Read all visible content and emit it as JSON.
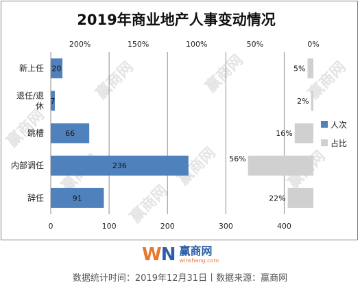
{
  "chart_data": {
    "type": "bar",
    "title": "2019年商业地产人事变动情况",
    "categories": [
      "新上任",
      "退任/退休",
      "跳槽",
      "内部调任",
      "辞任"
    ],
    "category_label_lines": [
      [
        "新上任"
      ],
      [
        "退任/退",
        "休"
      ],
      [
        "跳槽"
      ],
      [
        "内部调任"
      ],
      [
        "辞任"
      ]
    ],
    "series": [
      {
        "name": "人次",
        "values": [
          20,
          7,
          66,
          236,
          91
        ],
        "value_labels": [
          "20",
          "7",
          "66",
          "236",
          "91"
        ],
        "color": "#4f81bd",
        "axis": "bottom",
        "xlim": [
          0,
          450
        ],
        "ticks": [
          0,
          100,
          200,
          300,
          400
        ],
        "tick_labels": [
          "0",
          "100",
          "200",
          "300",
          "400"
        ]
      },
      {
        "name": "占比",
        "values": [
          5,
          2,
          16,
          56,
          22
        ],
        "value_labels": [
          "5%",
          "2%",
          "16%",
          "56%",
          "22%"
        ],
        "color": "#d0d0d0",
        "axis": "top",
        "reversed": true,
        "xlim": [
          0,
          225
        ],
        "ticks": [
          200,
          150,
          100,
          50,
          0
        ],
        "tick_labels": [
          "200%",
          "150%",
          "100%",
          "50%",
          "0%"
        ]
      }
    ],
    "grid": true,
    "legend_position": "right"
  },
  "brand": {
    "logo_mark_w": "W",
    "logo_mark_n": "N",
    "name_cn": "赢商网",
    "name_en": "winshang.com",
    "watermark": "赢商网"
  },
  "footnote": "数据统计时间：2019年12月31日丨数据来源：赢商网"
}
